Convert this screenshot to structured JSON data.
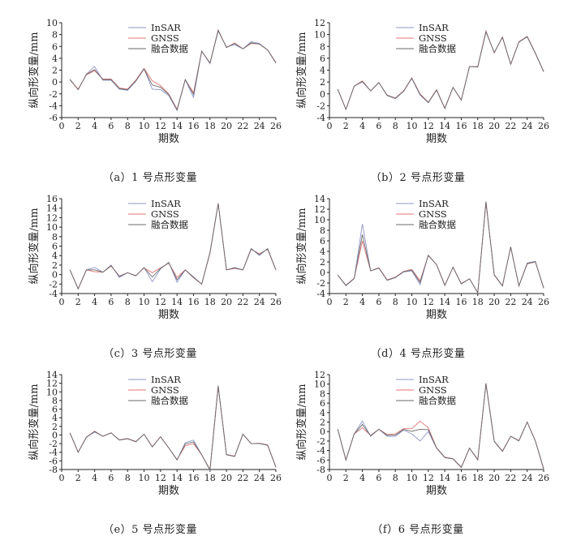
{
  "figure": {
    "x_ticks": [
      0,
      2,
      4,
      6,
      8,
      10,
      12,
      14,
      16,
      18,
      20,
      22,
      24,
      26
    ],
    "xlabel": "期数",
    "ylabel": "纵向形变量/mm",
    "legend": [
      "InSAR",
      "GNSS",
      "融合数据"
    ],
    "colors": {
      "InSAR": "#8f96c8",
      "GNSS": "#e07474",
      "融合数据": "#6a6a6a"
    },
    "legend_placement": "top-left"
  },
  "chart_data": [
    {
      "caption": "（a）1 号点形变量",
      "type": "line",
      "xlabel": "期数",
      "ylabel": "纵向形变量/mm",
      "ylim": [
        -6,
        10
      ],
      "yticks": [
        10,
        8,
        6,
        4,
        2,
        0,
        -2,
        -4,
        -6
      ],
      "x": [
        1,
        2,
        3,
        4,
        5,
        6,
        7,
        8,
        9,
        10,
        11,
        12,
        13,
        14,
        15,
        16,
        17,
        18,
        19,
        20,
        21,
        22,
        23,
        24,
        25,
        26
      ],
      "series": [
        {
          "name": "InSAR",
          "values": [
            0.5,
            -1.3,
            1.3,
            2.6,
            0.3,
            0.3,
            -1.2,
            -1.4,
            0.1,
            2.2,
            -1.2,
            -1.3,
            -2.3,
            -4.8,
            0.4,
            -2.6,
            5.2,
            3.1,
            8.6,
            5.9,
            6.3,
            5.6,
            6.8,
            6.5,
            5.4,
            3.2
          ]
        },
        {
          "name": "GNSS",
          "values": [
            0.4,
            -1.2,
            1.2,
            1.9,
            0.5,
            0.5,
            -1.0,
            -1.2,
            0.3,
            2.3,
            0.2,
            -0.6,
            -2.0,
            -4.6,
            0.4,
            -1.8,
            5.2,
            3.2,
            8.8,
            5.8,
            6.6,
            5.6,
            6.5,
            6.4,
            5.4,
            3.3
          ]
        },
        {
          "name": "融合数据",
          "values": [
            0.4,
            -1.3,
            1.3,
            2.1,
            0.4,
            0.4,
            -1.1,
            -1.3,
            0.2,
            2.2,
            -0.5,
            -0.9,
            -2.1,
            -4.7,
            0.4,
            -2.1,
            5.2,
            3.2,
            8.7,
            5.8,
            6.5,
            5.6,
            6.6,
            6.4,
            5.4,
            3.2
          ]
        }
      ]
    },
    {
      "caption": "（b）2 号点形变量",
      "type": "line",
      "xlabel": "期数",
      "ylabel": "纵向形变量/mm",
      "ylim": [
        -4,
        12
      ],
      "yticks": [
        12,
        10,
        8,
        6,
        4,
        2,
        0,
        -2,
        -4
      ],
      "x": [
        1,
        2,
        3,
        4,
        5,
        6,
        7,
        8,
        9,
        10,
        11,
        12,
        13,
        14,
        15,
        16,
        17,
        18,
        19,
        20,
        21,
        22,
        23,
        24,
        25,
        26
      ],
      "series": [
        {
          "name": "InSAR",
          "values": [
            0.8,
            -2.6,
            1.3,
            2.0,
            0.5,
            1.9,
            -0.3,
            -0.8,
            0.4,
            2.6,
            -0.2,
            -1.5,
            0.6,
            -2.5,
            1.1,
            -1.1,
            4.6,
            4.5,
            10.4,
            7.0,
            9.5,
            5.0,
            8.7,
            9.6,
            6.8,
            3.7
          ]
        },
        {
          "name": "GNSS",
          "values": [
            0.8,
            -2.6,
            1.3,
            2.2,
            0.5,
            1.9,
            -0.2,
            -0.7,
            0.5,
            2.7,
            0.0,
            -1.4,
            0.7,
            -2.4,
            1.1,
            -1.0,
            4.6,
            4.6,
            10.6,
            6.9,
            9.6,
            5.0,
            8.8,
            9.7,
            6.9,
            3.8
          ]
        },
        {
          "name": "融合数据",
          "values": [
            0.8,
            -2.6,
            1.3,
            2.1,
            0.5,
            1.9,
            -0.25,
            -0.75,
            0.45,
            2.65,
            -0.1,
            -1.45,
            0.65,
            -2.45,
            1.1,
            -1.05,
            4.6,
            4.55,
            10.5,
            6.95,
            9.55,
            5.0,
            8.75,
            9.65,
            6.85,
            3.75
          ]
        }
      ]
    },
    {
      "caption": "（c）3 号点形变量",
      "type": "line",
      "xlabel": "期数",
      "ylabel": "纵向形变量/mm",
      "ylim": [
        -4,
        16
      ],
      "yticks": [
        16,
        14,
        12,
        10,
        8,
        6,
        4,
        2,
        0,
        -2,
        -4
      ],
      "x": [
        1,
        2,
        3,
        4,
        5,
        6,
        7,
        8,
        9,
        10,
        11,
        12,
        13,
        14,
        15,
        16,
        17,
        18,
        19,
        20,
        21,
        22,
        23,
        24,
        25,
        26
      ],
      "series": [
        {
          "name": "InSAR",
          "values": [
            1.0,
            -3.0,
            1.0,
            1.5,
            0.5,
            2.0,
            -0.6,
            0.4,
            -0.3,
            1.5,
            -1.5,
            1.2,
            2.6,
            -1.6,
            1.0,
            -0.5,
            -2.0,
            4.5,
            15.0,
            1.0,
            1.5,
            1.0,
            5.5,
            4.0,
            5.5,
            1.0
          ]
        },
        {
          "name": "GNSS",
          "values": [
            1.0,
            -3.0,
            1.0,
            0.6,
            0.5,
            1.8,
            -0.3,
            0.4,
            -0.2,
            1.4,
            0.4,
            1.4,
            2.4,
            -0.6,
            1.0,
            -0.7,
            -2.0,
            4.7,
            15.0,
            1.0,
            1.3,
            1.0,
            5.3,
            4.4,
            5.3,
            1.0
          ]
        },
        {
          "name": "融合数据",
          "values": [
            1.0,
            -3.0,
            1.0,
            1.0,
            0.5,
            1.9,
            -0.4,
            0.4,
            -0.25,
            1.45,
            -0.5,
            1.3,
            2.5,
            -1.1,
            1.0,
            -0.6,
            -2.0,
            4.6,
            15.0,
            1.0,
            1.4,
            1.0,
            5.4,
            4.2,
            5.4,
            1.0
          ]
        }
      ]
    },
    {
      "caption": "（d）4 号点形变量",
      "type": "line",
      "xlabel": "期数",
      "ylabel": "纵向形变量/mm",
      "ylim": [
        -4,
        14
      ],
      "yticks": [
        14,
        12,
        10,
        8,
        6,
        4,
        2,
        0,
        -2,
        -4
      ],
      "x": [
        1,
        2,
        3,
        4,
        5,
        6,
        7,
        8,
        9,
        10,
        11,
        12,
        13,
        14,
        15,
        16,
        17,
        18,
        19,
        20,
        21,
        22,
        23,
        24,
        25,
        26
      ],
      "series": [
        {
          "name": "InSAR",
          "values": [
            -0.5,
            -2.5,
            -1.2,
            9.2,
            0.3,
            0.8,
            -1.5,
            -1.0,
            0.1,
            0.3,
            -2.3,
            3.3,
            1.5,
            -2.5,
            1.0,
            -2.2,
            -1.2,
            -3.9,
            13.5,
            -0.5,
            -2.6,
            4.9,
            -2.6,
            1.8,
            2.1,
            -3.0
          ]
        },
        {
          "name": "GNSS",
          "values": [
            -0.5,
            -2.4,
            -1.1,
            6.0,
            0.3,
            0.9,
            -1.4,
            -0.9,
            0.2,
            0.6,
            -1.6,
            3.2,
            1.5,
            -2.4,
            1.0,
            -2.1,
            -1.2,
            -3.8,
            13.2,
            -0.4,
            -2.5,
            4.8,
            -2.5,
            1.6,
            2.0,
            -2.9
          ]
        },
        {
          "name": "融合数据",
          "values": [
            -0.5,
            -2.45,
            -1.15,
            7.2,
            0.3,
            0.85,
            -1.45,
            -0.95,
            0.15,
            0.45,
            -1.9,
            3.25,
            1.5,
            -2.45,
            1.0,
            -2.15,
            -1.2,
            -3.85,
            13.4,
            -0.45,
            -2.55,
            4.85,
            -2.55,
            1.7,
            2.05,
            -2.95
          ]
        }
      ]
    },
    {
      "caption": "（e）5 号点形变量",
      "type": "line",
      "xlabel": "期数",
      "ylabel": "纵向形变量/mm",
      "ylim": [
        -8,
        14
      ],
      "yticks": [
        14,
        12,
        10,
        8,
        6,
        4,
        2,
        0,
        -2,
        -4,
        -6,
        -8
      ],
      "x": [
        1,
        2,
        3,
        4,
        5,
        6,
        7,
        8,
        9,
        10,
        11,
        12,
        13,
        14,
        15,
        16,
        17,
        18,
        19,
        20,
        21,
        22,
        23,
        24,
        25,
        26
      ],
      "series": [
        {
          "name": "InSAR",
          "values": [
            0.5,
            -4.0,
            -0.5,
            0.7,
            -0.3,
            0.5,
            -1.2,
            -0.9,
            -1.6,
            0.2,
            -2.8,
            -0.4,
            -3.0,
            -5.8,
            -1.8,
            -1.2,
            -4.6,
            -8.2,
            11.5,
            -4.6,
            -5.0,
            0.2,
            -2.0,
            -2.0,
            -2.4,
            -7.5
          ]
        },
        {
          "name": "GNSS",
          "values": [
            0.5,
            -4.0,
            -0.5,
            0.9,
            -0.3,
            0.5,
            -1.1,
            -0.8,
            -1.5,
            0.2,
            -2.7,
            -0.4,
            -3.0,
            -5.7,
            -2.5,
            -2.0,
            -4.6,
            -8.0,
            11.2,
            -4.5,
            -4.9,
            0.2,
            -2.0,
            -1.9,
            -2.3,
            -7.4
          ]
        },
        {
          "name": "融合数据",
          "values": [
            0.5,
            -4.0,
            -0.5,
            0.8,
            -0.3,
            0.5,
            -1.15,
            -0.85,
            -1.55,
            0.2,
            -2.75,
            -0.4,
            -3.0,
            -5.75,
            -2.1,
            -1.6,
            -4.6,
            -8.1,
            11.35,
            -4.55,
            -4.95,
            0.2,
            -2.0,
            -1.95,
            -2.35,
            -7.45
          ]
        }
      ]
    },
    {
      "caption": "（f）6 号点形变量",
      "type": "line",
      "xlabel": "期数",
      "ylabel": "纵向形变量/mm",
      "ylim": [
        -8,
        12
      ],
      "yticks": [
        12,
        10,
        8,
        6,
        4,
        2,
        0,
        -2,
        -4,
        -6,
        -8
      ],
      "x": [
        1,
        2,
        3,
        4,
        5,
        6,
        7,
        8,
        9,
        10,
        11,
        12,
        13,
        14,
        15,
        16,
        17,
        18,
        19,
        20,
        21,
        22,
        23,
        24,
        25,
        26
      ],
      "series": [
        {
          "name": "InSAR",
          "values": [
            0.5,
            -6.0,
            -0.5,
            2.2,
            -1.0,
            0.5,
            -1.0,
            -1.0,
            0.3,
            -0.5,
            -2.0,
            0.0,
            -3.5,
            -5.5,
            -5.8,
            -7.6,
            -3.5,
            -6.0,
            10.0,
            -2.1,
            -4.2,
            -1.0,
            -2.0,
            2.0,
            -2.0,
            -8.0
          ]
        },
        {
          "name": "GNSS",
          "values": [
            0.5,
            -6.0,
            -0.5,
            0.8,
            -0.8,
            0.5,
            -0.6,
            -0.5,
            0.6,
            0.6,
            2.2,
            0.8,
            -3.4,
            -5.4,
            -5.7,
            -7.5,
            -3.5,
            -5.9,
            10.2,
            -2.0,
            -4.1,
            -1.0,
            -1.9,
            2.0,
            -2.0,
            -7.8
          ]
        },
        {
          "name": "融合数据",
          "values": [
            0.5,
            -6.0,
            -0.5,
            1.5,
            -0.9,
            0.5,
            -0.8,
            -0.75,
            0.45,
            0.05,
            0.5,
            0.4,
            -3.45,
            -5.45,
            -5.75,
            -7.55,
            -3.5,
            -5.95,
            10.1,
            -2.05,
            -4.15,
            -1.0,
            -1.95,
            2.0,
            -2.0,
            -7.9
          ]
        }
      ]
    }
  ]
}
